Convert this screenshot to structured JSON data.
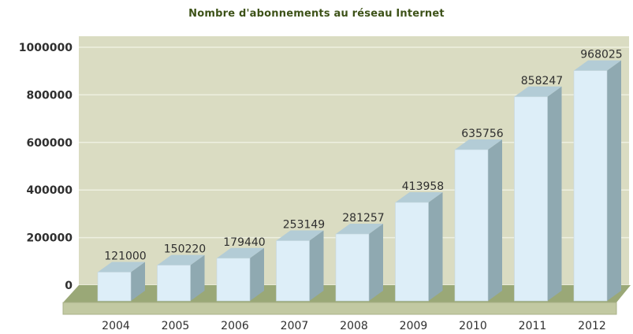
{
  "chart_data": {
    "type": "bar",
    "title": "Nombre d'abonnements au réseau Internet",
    "categories": [
      "2004",
      "2005",
      "2006",
      "2007",
      "2008",
      "2009",
      "2010",
      "2011",
      "2012"
    ],
    "values": [
      121000,
      150220,
      179440,
      253149,
      281257,
      413958,
      635756,
      858247,
      968025
    ],
    "data_labels": [
      "121000",
      "150220",
      "179440",
      "253149",
      "281257",
      "413958",
      "635756",
      "858247",
      "968025"
    ],
    "ylim": [
      0,
      1000000
    ],
    "yticks": [
      0,
      200000,
      400000,
      600000,
      800000,
      1000000
    ],
    "ytick_labels": [
      "0",
      "200000",
      "400000",
      "600000",
      "800000",
      "1000000"
    ],
    "xlabel": "",
    "ylabel": "",
    "grid": true,
    "colors": {
      "background_wall": "#dadcc2",
      "floor_top": "#9aa877",
      "floor_front": "#c2c9a2",
      "bar_front": "#ddeef8",
      "bar_side": "#8fa9b1",
      "bar_top": "#b3ccd6",
      "gridline": "#eef0e0",
      "title": "#3d5218"
    }
  }
}
